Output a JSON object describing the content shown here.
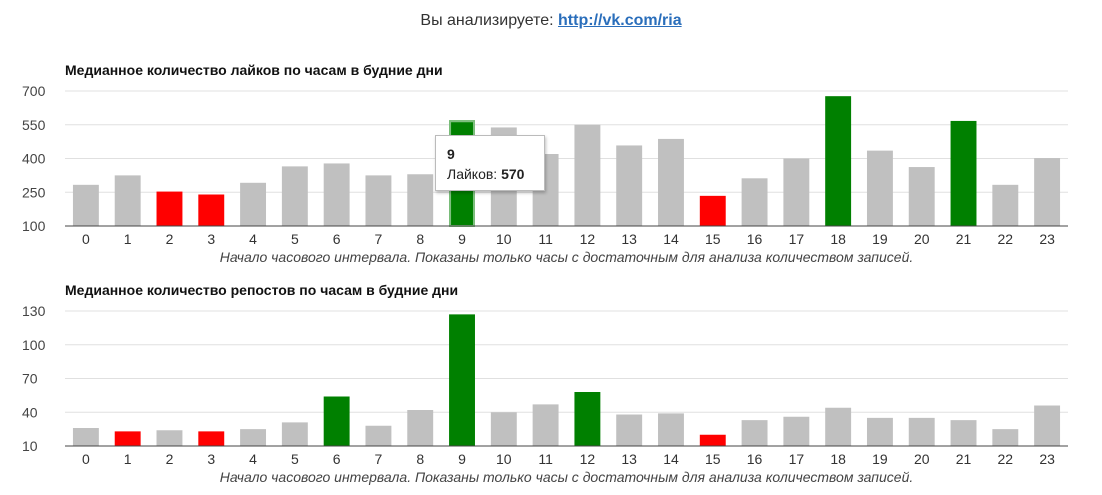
{
  "header": {
    "prefix": "Вы анализируете: ",
    "link": "http://vk.com/ria"
  },
  "colors": {
    "neutral": "#c0c0c0",
    "high": "#008000",
    "low": "#ff0000",
    "grid": "#e0e0e0"
  },
  "chart_data": [
    {
      "type": "bar",
      "title": "Медианное количество лайков по часам в будние дни",
      "xlabel": "Начало часового интервала. Показаны только часы с достаточным для анализа количеством записей.",
      "ylim": [
        100,
        700
      ],
      "yticks": [
        100,
        250,
        400,
        550,
        700
      ],
      "categories": [
        "0",
        "1",
        "2",
        "3",
        "4",
        "5",
        "6",
        "7",
        "8",
        "9",
        "10",
        "11",
        "12",
        "13",
        "14",
        "15",
        "16",
        "17",
        "18",
        "19",
        "20",
        "21",
        "22",
        "23"
      ],
      "values": [
        283,
        325,
        253,
        240,
        292,
        365,
        378,
        325,
        330,
        570,
        538,
        420,
        550,
        458,
        487,
        234,
        312,
        400,
        677,
        435,
        362,
        567,
        283,
        402
      ],
      "highlight": [
        "neutral",
        "neutral",
        "low",
        "low",
        "neutral",
        "neutral",
        "neutral",
        "neutral",
        "neutral",
        "high",
        "neutral",
        "neutral",
        "neutral",
        "neutral",
        "neutral",
        "low",
        "neutral",
        "neutral",
        "high",
        "neutral",
        "neutral",
        "high",
        "neutral",
        "neutral"
      ],
      "tooltip": {
        "category": "9",
        "label": "Лайков: ",
        "value": "570"
      }
    },
    {
      "type": "bar",
      "title": "Медианное количество репостов по часам в будние дни",
      "xlabel": "Начало часового интервала. Показаны только часы с достаточным для анализа количеством записей.",
      "ylim": [
        10,
        130
      ],
      "yticks": [
        10,
        40,
        70,
        100,
        130
      ],
      "categories": [
        "0",
        "1",
        "2",
        "3",
        "4",
        "5",
        "6",
        "7",
        "8",
        "9",
        "10",
        "11",
        "12",
        "13",
        "14",
        "15",
        "16",
        "17",
        "18",
        "19",
        "20",
        "21",
        "22",
        "23"
      ],
      "values": [
        26,
        23,
        24,
        23,
        25,
        31,
        54,
        28,
        42,
        127,
        40,
        47,
        58,
        38,
        39,
        20,
        33,
        36,
        44,
        35,
        35,
        33,
        25,
        46
      ],
      "highlight": [
        "neutral",
        "low",
        "neutral",
        "low",
        "neutral",
        "neutral",
        "high",
        "neutral",
        "neutral",
        "high",
        "neutral",
        "neutral",
        "high",
        "neutral",
        "neutral",
        "low",
        "neutral",
        "neutral",
        "neutral",
        "neutral",
        "neutral",
        "neutral",
        "neutral",
        "neutral"
      ]
    }
  ]
}
